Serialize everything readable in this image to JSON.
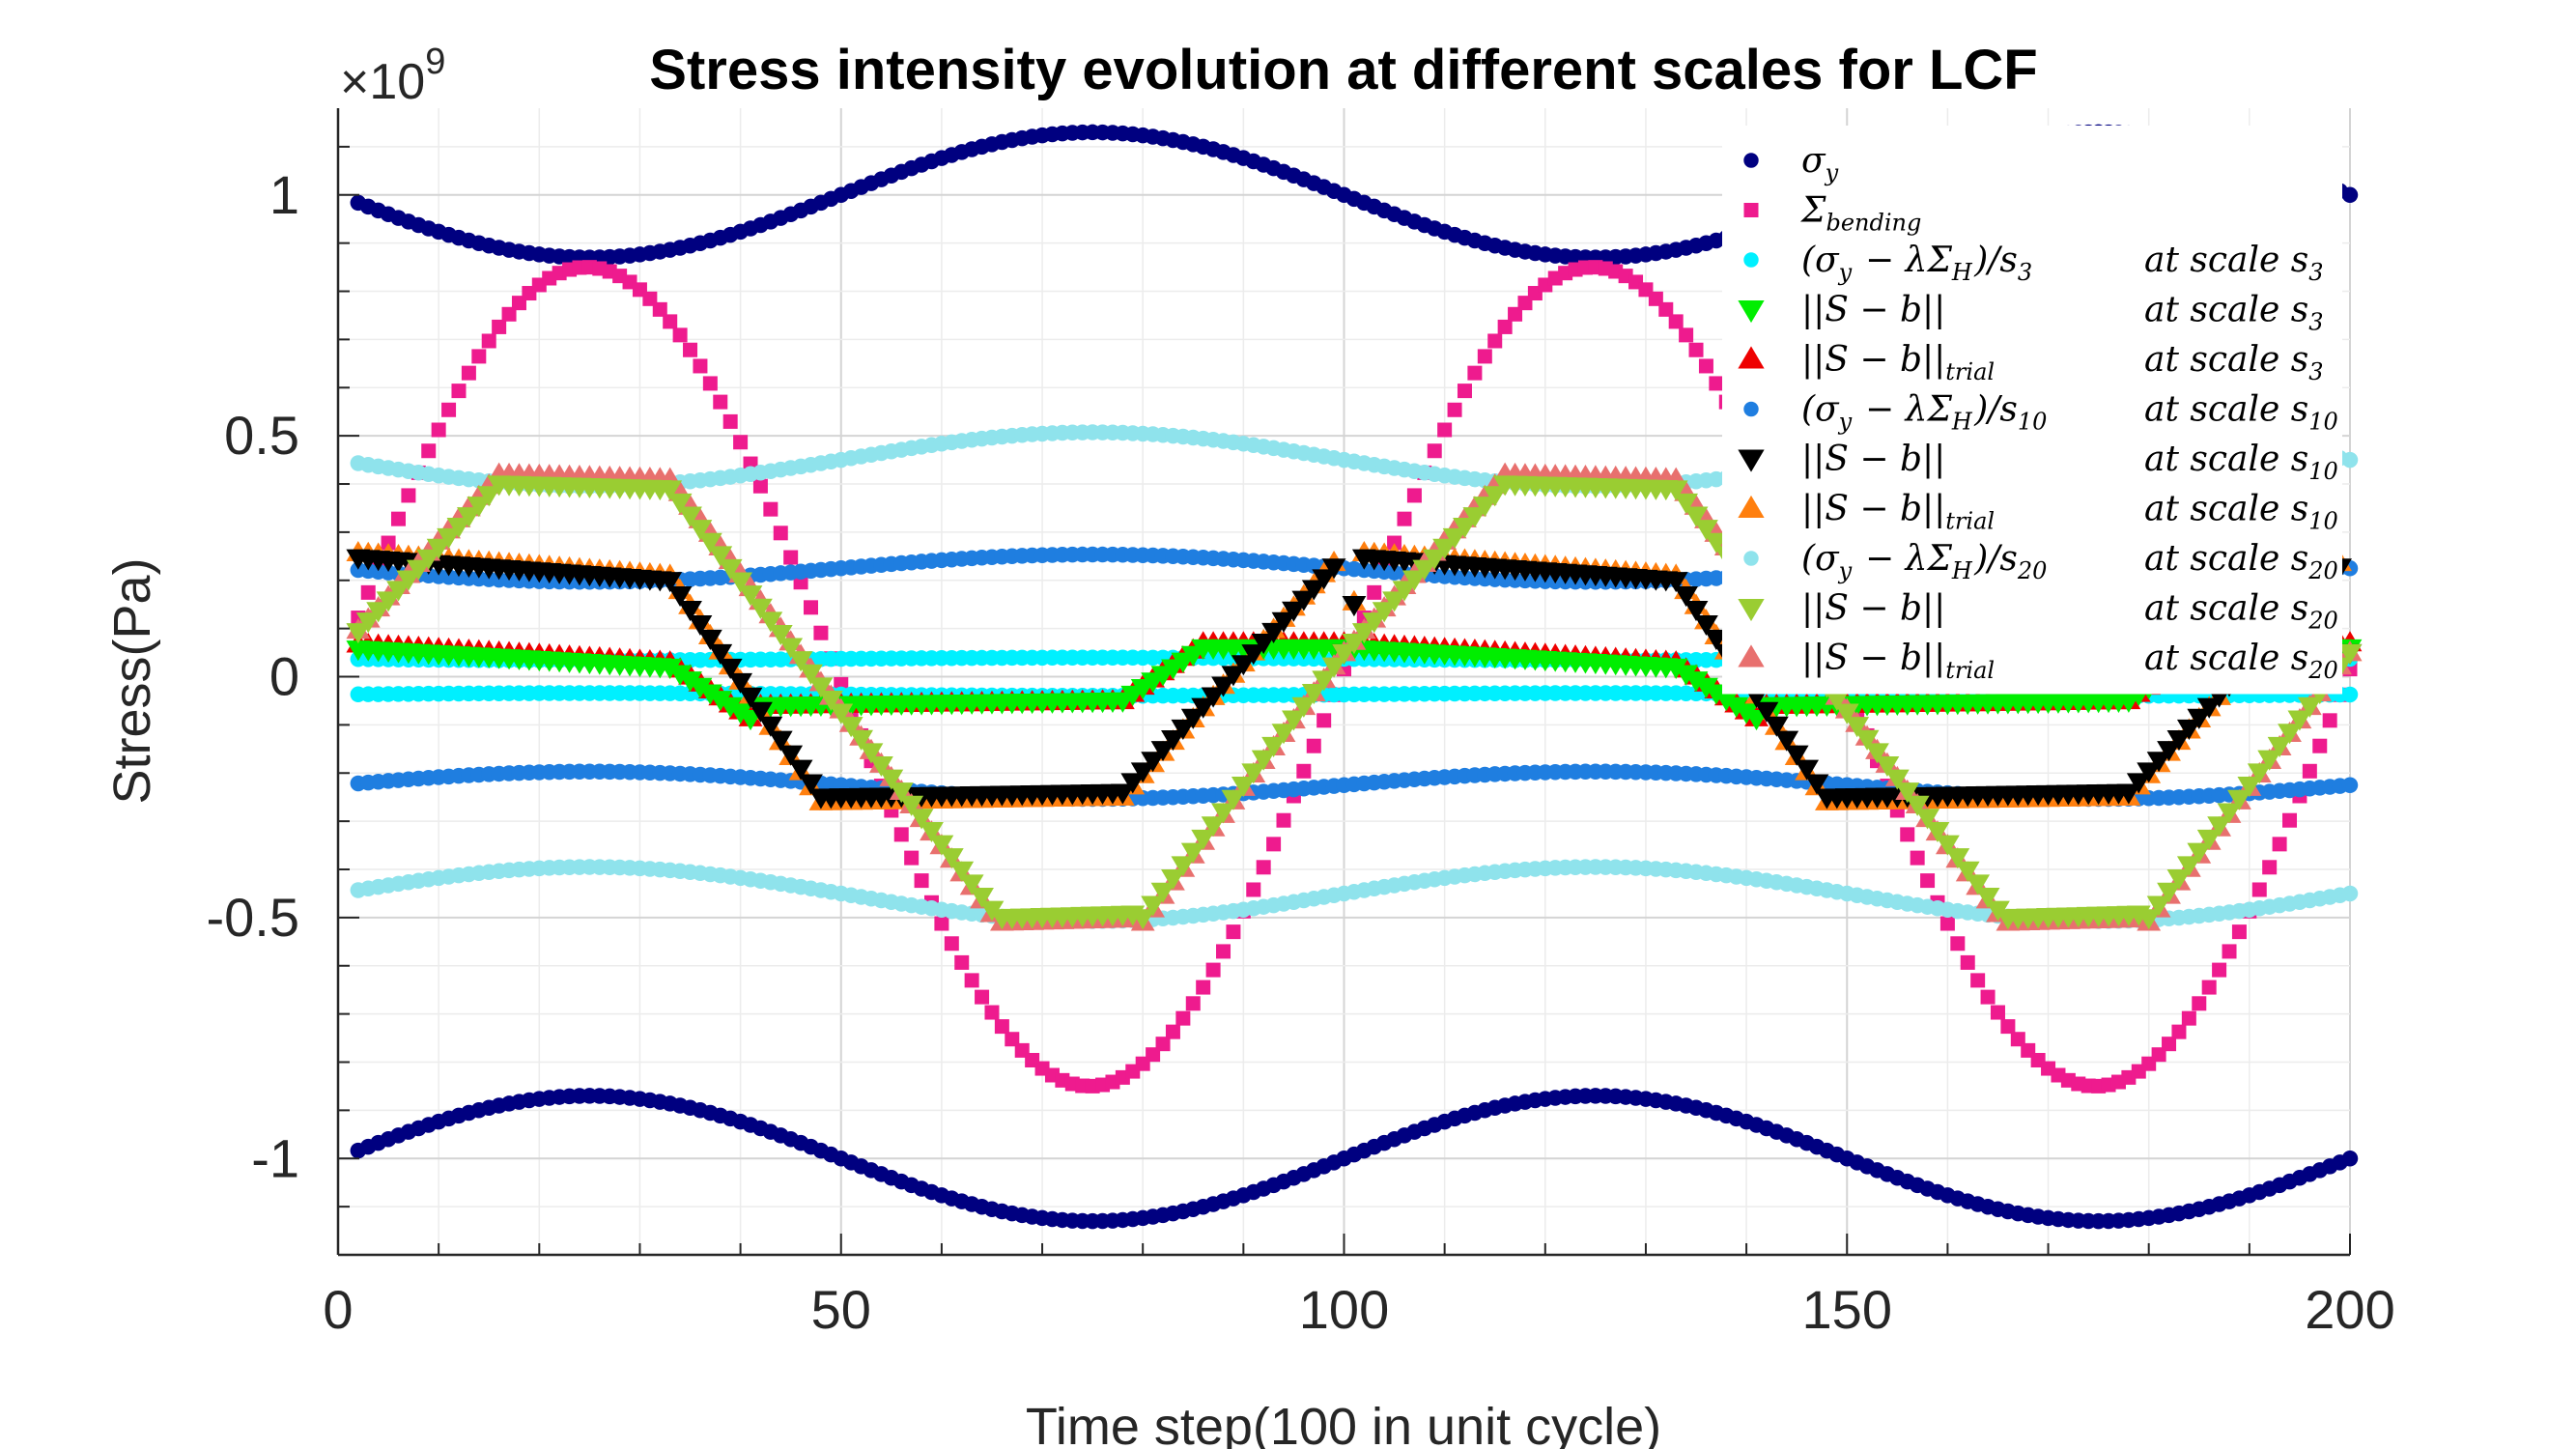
{
  "chart_data": {
    "type": "scatter",
    "title": "Stress intensity evolution at different scales for LCF",
    "xlabel": "Time step(100 in unit cycle)",
    "ylabel": "Stress(Pa)",
    "y_exponent_label": "×10^9",
    "xlim": [
      0,
      200
    ],
    "ylim": [
      -1200000000.0,
      1180000000.0
    ],
    "xticks": [
      0,
      50,
      100,
      150,
      200
    ],
    "xtick_labels": [
      "0",
      "50",
      "100",
      "150",
      "200"
    ],
    "yticks": [
      -1000000000.0,
      -500000000.0,
      0,
      500000000.0,
      1000000000.0
    ],
    "ytick_labels": [
      "-1",
      "-0.5",
      "0",
      "0.5",
      "1"
    ],
    "grid": true,
    "legend_position": "top-right",
    "series": [
      {
        "name": "σ_y",
        "label_main": "σy",
        "label_scale": "",
        "marker": "circle",
        "color": "#000080",
        "mirror": true,
        "curve": {
          "kind": "yield",
          "base": 1000000000.0,
          "amp": 130000000.0,
          "flat_amp": 50000000.0
        }
      },
      {
        "name": "Σ_bending",
        "label_main": "Σbending",
        "label_scale": "",
        "marker": "square",
        "color": "#ee1b8e",
        "mirror": false,
        "curve": {
          "kind": "sine",
          "amp": 850000000.0
        }
      },
      {
        "name": "(σy − λΣH)/s3",
        "label_main": "(σy − λΣH)/s3",
        "label_scale": "at scale s3",
        "marker": "circle",
        "color": "#00f0ff",
        "mirror": true,
        "curve": {
          "kind": "yield",
          "base": 37000000.0,
          "amp": 3000000.0,
          "flat_amp": 1000000.0
        }
      },
      {
        "name": "||S − b|| at scale s3",
        "label_main": "||S − b||",
        "label_scale": "at scale s3",
        "marker": "triangle-down",
        "color": "#00ee00",
        "mirror": false,
        "curve": {
          "kind": "resid",
          "elastic": 60000000.0,
          "shift": 0.0,
          "small": true
        }
      },
      {
        "name": "||S − b||trial at scale s3",
        "label_main": "||S − b||trial",
        "label_scale": "at scale s3",
        "marker": "triangle-up",
        "color": "#ee0000",
        "mirror": false,
        "curve": {
          "kind": "resid",
          "elastic": 70000000.0,
          "shift": 0.0,
          "small": true
        }
      },
      {
        "name": "(σy − λΣH)/s10",
        "label_main": "(σy − λΣH)/s10",
        "label_scale": "at scale s10",
        "marker": "circle",
        "color": "#1f7ee0",
        "mirror": true,
        "curve": {
          "kind": "yield",
          "base": 225000000.0,
          "amp": 28000000.0,
          "flat_amp": 11000000.0
        }
      },
      {
        "name": "||S − b|| at scale s10",
        "label_main": "||S − b||",
        "label_scale": "at scale s10",
        "marker": "triangle-down",
        "color": "#000000",
        "mirror": false,
        "curve": {
          "kind": "resid",
          "elastic": 250000000.0,
          "shift": 0.0,
          "small": false
        }
      },
      {
        "name": "||S − b||trial at scale s10",
        "label_main": "||S − b||trial",
        "label_scale": "at scale s10",
        "marker": "triangle-up",
        "color": "#ff7f0e",
        "mirror": false,
        "curve": {
          "kind": "resid",
          "elastic": 260000000.0,
          "shift": 0.0,
          "small": false
        }
      },
      {
        "name": "(σy − λΣH)/s20",
        "label_main": "(σy − λΣH)/s20",
        "label_scale": "at scale s20",
        "marker": "circle",
        "color": "#8fe3ec",
        "mirror": true,
        "curve": {
          "kind": "yield",
          "base": 450000000.0,
          "amp": 55000000.0,
          "flat_amp": 22000000.0
        }
      },
      {
        "name": "||S − b|| at scale s20",
        "label_main": "||S − b||",
        "label_scale": "at scale s20",
        "marker": "triangle-down",
        "color": "#9acd32",
        "mirror": false,
        "curve": {
          "kind": "tri",
          "peak": 400000000.0,
          "trough": -500000000.0
        }
      },
      {
        "name": "||S − b||trial at scale s20",
        "label_main": "||S − b||trial",
        "label_scale": "at scale s20",
        "marker": "triangle-up",
        "color": "#e8706e",
        "mirror": false,
        "curve": {
          "kind": "tri",
          "peak": 420000000.0,
          "trough": -510000000.0
        }
      }
    ],
    "legend": [
      {
        "main": "σ",
        "sub": "y",
        "scale": "",
        "scale_sub": ""
      },
      {
        "main": "Σ",
        "sub": "bending",
        "scale": "",
        "scale_sub": ""
      },
      {
        "main": "(σ",
        "sub": "y",
        "rest": " − λΣ",
        "sub2": "H",
        "tail": ")/s",
        "sub3": "3",
        "scale": "at scale s",
        "scale_sub": "3"
      },
      {
        "main": "||S − b||",
        "sub": "",
        "scale": "at scale s",
        "scale_sub": "3"
      },
      {
        "main": "||S − b||",
        "sub": "trial",
        "scale": "at scale s",
        "scale_sub": "3"
      },
      {
        "main": "(σ",
        "sub": "y",
        "rest": " − λΣ",
        "sub2": "H",
        "tail": ")/s",
        "sub3": "10",
        "scale": "at scale s",
        "scale_sub": "10"
      },
      {
        "main": "||S − b||",
        "sub": "",
        "scale": "at scale s",
        "scale_sub": "10"
      },
      {
        "main": "||S − b||",
        "sub": "trial",
        "scale": "at scale s",
        "scale_sub": "10"
      },
      {
        "main": "(σ",
        "sub": "y",
        "rest": " − λΣ",
        "sub2": "H",
        "tail": ")/s",
        "sub3": "20",
        "scale": "at scale s",
        "scale_sub": "20"
      },
      {
        "main": "||S − b||",
        "sub": "",
        "scale": "at scale s",
        "scale_sub": "20"
      },
      {
        "main": "||S − b||",
        "sub": "trial",
        "scale": "at scale s",
        "scale_sub": "20"
      }
    ]
  }
}
